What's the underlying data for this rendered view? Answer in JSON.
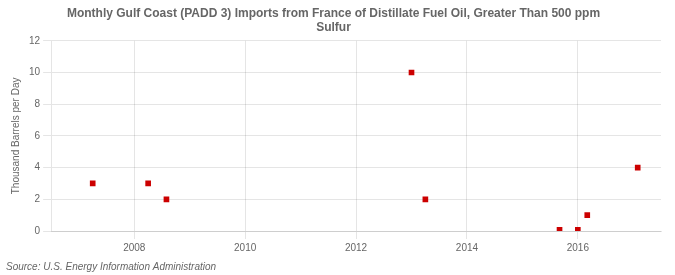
{
  "chart_data": {
    "type": "scatter",
    "title": "Monthly Gulf Coast (PADD 3) Imports from France of Distillate Fuel Oil, Greater Than 500 ppm\nSulfur",
    "ylabel": "Thousand Barrels per Day",
    "source": "Source: U.S. Energy Information Administration",
    "x": [
      2007.25,
      2008.25,
      2008.58,
      2013.0,
      2013.25,
      2015.67,
      2016.0,
      2016.17,
      2017.08
    ],
    "values": [
      3.0,
      3.0,
      2.0,
      10.0,
      2.0,
      0.07,
      0.07,
      1.0,
      4.0
    ],
    "color": "#cc0000",
    "marker": "square",
    "xlim": [
      2006.5,
      2017.5
    ],
    "ylim": [
      0,
      12
    ],
    "xticks": [
      2008,
      2010,
      2012,
      2014,
      2016
    ],
    "yticks": [
      0,
      2,
      4,
      6,
      8,
      10,
      12
    ],
    "grid": true
  }
}
